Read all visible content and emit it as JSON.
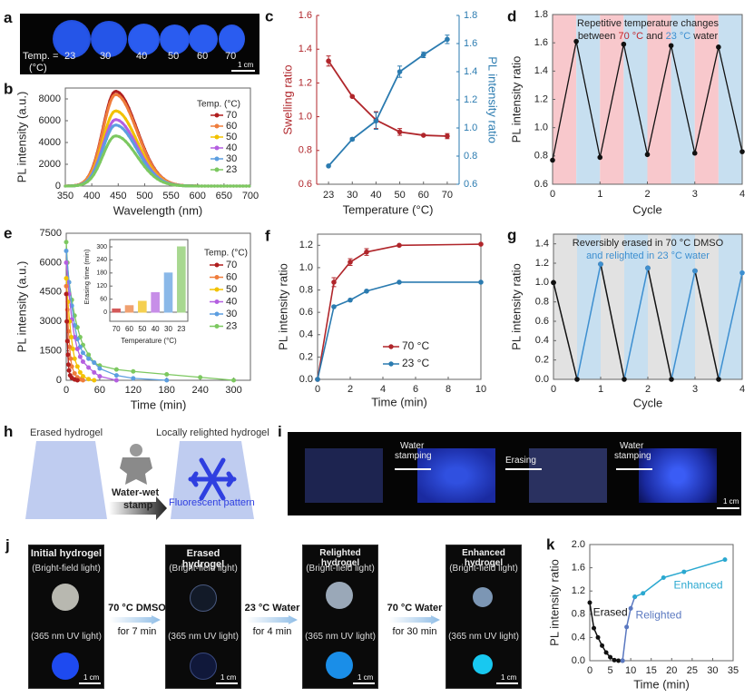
{
  "panels": {
    "a": {
      "label": "a",
      "temp_prefix": "Temp. =",
      "temp_unit": "(°C)",
      "temps": [
        "23",
        "30",
        "40",
        "50",
        "60",
        "70"
      ],
      "scale_bar": "1 cm"
    },
    "h": {
      "label": "h",
      "left_caption": "Erased hydrogel",
      "right_caption": "Locally relighted hydrogel",
      "arrow_caption_1": "Water-wet",
      "arrow_caption_2": "stamp",
      "pattern_caption": "Fluorescent  pattern",
      "colors": {
        "gel": "#b8c7ee",
        "pattern": "#2f3fe0"
      }
    },
    "i": {
      "label": "i",
      "steps": [
        {
          "text1": "Water",
          "text2": "stamping"
        },
        {
          "text1": "Erasing",
          "text2": ""
        },
        {
          "text1": "Water",
          "text2": "stamping"
        }
      ],
      "scale_bar": "1 cm"
    },
    "j": {
      "label": "j",
      "tiles": [
        {
          "title": "Initial hydrogel",
          "top": "(Bright-field light)",
          "bottom": "(365 nm UV light)",
          "scale": "1 cm"
        },
        {
          "title": "Erased hydrogel",
          "top": "(Bright-field light)",
          "bottom": "(365 nm UV light)",
          "scale": "1 cm"
        },
        {
          "title": "Relighted hydrogel",
          "top": "(Bright-field light)",
          "bottom": "(365 nm UV light)",
          "scale": "1 cm"
        },
        {
          "title": "Enhanced hydrogel",
          "top": "(Bright-field light)",
          "bottom": "(365 nm UV light)",
          "scale": "1 cm"
        }
      ],
      "steps": [
        {
          "line1": "70 °C DMSO",
          "line2": "for 7 min"
        },
        {
          "line1": "23 °C Water",
          "line2": "for 4 min"
        },
        {
          "line1": "70 °C Water",
          "line2": "for 30 min"
        }
      ]
    }
  },
  "chart_data": [
    {
      "id": "b",
      "label": "b",
      "type": "line",
      "xlabel": "Wavelength (nm)",
      "ylabel": "PL intensity (a.u.)",
      "xlim": [
        350,
        700
      ],
      "ylim": [
        0,
        9000
      ],
      "xticks": [
        350,
        400,
        450,
        500,
        550,
        600,
        650,
        700
      ],
      "yticks": [
        0,
        2000,
        4000,
        6000,
        8000
      ],
      "legend_title": "Temp. (°C)",
      "legend_position": "top-right",
      "peak_wavelength": 445,
      "series": [
        {
          "name": "70",
          "color": "#b01e1e",
          "peak": 8700
        },
        {
          "name": "60",
          "color": "#ef7d3c",
          "peak": 8400
        },
        {
          "name": "50",
          "color": "#f2c200",
          "peak": 6900
        },
        {
          "name": "40",
          "color": "#b45fe0",
          "peak": 6100
        },
        {
          "name": "30",
          "color": "#5c9ee0",
          "peak": 5600
        },
        {
          "name": "23",
          "color": "#7cc860",
          "peak": 4600
        }
      ]
    },
    {
      "id": "c",
      "label": "c",
      "type": "line",
      "xlabel": "Temperature (°C)",
      "ylabel_left": "Swelling ratio",
      "ylabel_right": "PL intensity ratio",
      "categories": [
        "23",
        "30",
        "40",
        "50",
        "60",
        "70"
      ],
      "ylim_left": [
        0.6,
        1.6
      ],
      "yticks_left": [
        0.6,
        0.8,
        1.0,
        1.2,
        1.4,
        1.6
      ],
      "ylim_right": [
        0.6,
        1.8
      ],
      "yticks_right": [
        0.6,
        0.8,
        1.0,
        1.2,
        1.4,
        1.6,
        1.8
      ],
      "series": [
        {
          "name": "Swelling ratio",
          "axis": "left",
          "color": "#b0262b",
          "values": [
            1.33,
            1.12,
            0.98,
            0.91,
            0.89,
            0.885
          ],
          "errors": [
            0.03,
            0.005,
            0.05,
            0.02,
            0.005,
            0.015
          ]
        },
        {
          "name": "PL intensity ratio",
          "axis": "right",
          "color": "#2b7bb0",
          "values": [
            0.73,
            0.92,
            1.05,
            1.4,
            1.52,
            1.63
          ],
          "errors": [
            0.005,
            0.01,
            0.06,
            0.04,
            0.02,
            0.03
          ]
        }
      ]
    },
    {
      "id": "d",
      "label": "d",
      "type": "line",
      "xlabel": "Cycle",
      "ylabel": "PL intensity ratio",
      "xlim": [
        0,
        4
      ],
      "ylim": [
        0.6,
        1.8
      ],
      "xticks": [
        0,
        1,
        2,
        3,
        4
      ],
      "yticks": [
        0.6,
        0.8,
        1.0,
        1.2,
        1.4,
        1.6,
        1.8
      ],
      "annotation_line1": "Repetitive temperature changes",
      "annotation_line2_parts": [
        "between ",
        "70 °C",
        " and ",
        "23 °C",
        " water"
      ],
      "band_colors": {
        "hot": "#f8c8cc",
        "cold": "#c7dff0"
      },
      "annotation_colors": {
        "hot": "#c0262d",
        "cold": "#3d8fd0"
      },
      "series": [
        {
          "name": "cycle",
          "color": "#111111",
          "x": [
            0,
            0.5,
            1,
            1.5,
            2,
            2.5,
            3,
            3.5,
            4
          ],
          "y": [
            0.77,
            1.61,
            0.79,
            1.59,
            0.81,
            1.58,
            0.82,
            1.57,
            0.83
          ]
        }
      ]
    },
    {
      "id": "e",
      "label": "e",
      "type": "line",
      "xlabel": "Time (min)",
      "ylabel": "PL intensity (a.u.)",
      "xlim": [
        0,
        330
      ],
      "ylim": [
        0,
        7500
      ],
      "xticks": [
        0,
        60,
        120,
        180,
        240,
        300
      ],
      "yticks": [
        0,
        1500,
        3000,
        4500,
        6000,
        7500
      ],
      "legend_title": "Temp. (°C)",
      "legend_position": "top-right",
      "series": [
        {
          "name": "70",
          "color": "#b01e1e",
          "x": [
            0,
            1,
            2,
            3,
            4,
            5,
            7,
            10,
            15,
            20
          ],
          "y": [
            4400,
            3000,
            2000,
            1300,
            800,
            500,
            250,
            120,
            40,
            0
          ]
        },
        {
          "name": "60",
          "color": "#ef7d3c",
          "x": [
            0,
            2,
            4,
            6,
            8,
            10,
            15,
            20,
            25,
            30
          ],
          "y": [
            4800,
            3600,
            2500,
            1700,
            1100,
            700,
            350,
            150,
            50,
            0
          ]
        },
        {
          "name": "50",
          "color": "#f2c200",
          "x": [
            0,
            3,
            6,
            9,
            12,
            15,
            20,
            25,
            30,
            40,
            50
          ],
          "y": [
            5200,
            4000,
            3000,
            2200,
            1600,
            1100,
            700,
            400,
            200,
            60,
            0
          ]
        },
        {
          "name": "40",
          "color": "#b45fe0",
          "x": [
            0,
            5,
            10,
            15,
            20,
            25,
            30,
            40,
            50,
            60,
            90
          ],
          "y": [
            6000,
            4400,
            3100,
            2200,
            1600,
            1200,
            950,
            650,
            400,
            200,
            0
          ]
        },
        {
          "name": "30",
          "color": "#5c9ee0",
          "x": [
            0,
            5,
            10,
            15,
            20,
            25,
            30,
            40,
            50,
            60,
            90,
            120,
            180
          ],
          "y": [
            6600,
            5000,
            3800,
            2800,
            2100,
            1700,
            1400,
            1100,
            900,
            600,
            250,
            100,
            0
          ]
        },
        {
          "name": "23",
          "color": "#7cc860",
          "x": [
            0,
            2,
            5,
            10,
            15,
            20,
            25,
            30,
            40,
            50,
            60,
            90,
            120,
            180,
            240,
            300
          ],
          "y": [
            7050,
            6000,
            5000,
            4100,
            3300,
            2700,
            2200,
            1800,
            1300,
            900,
            750,
            550,
            450,
            300,
            150,
            0
          ]
        }
      ],
      "inset": {
        "type": "bar",
        "xlabel": "Temperature (°C)",
        "ylabel": "Erasing time (min)",
        "categories": [
          "70",
          "60",
          "50",
          "40",
          "30",
          "23"
        ],
        "values": [
          15,
          30,
          50,
          90,
          180,
          300
        ],
        "ylim": [
          0,
          300
        ],
        "yticks": [
          0,
          60,
          120,
          180,
          240,
          300
        ],
        "colors": [
          "#d45a5a",
          "#f0a070",
          "#f5d050",
          "#c78ee8",
          "#8ab8e8",
          "#a8d890"
        ]
      }
    },
    {
      "id": "f",
      "label": "f",
      "type": "line",
      "xlabel": "Time (min)",
      "ylabel": "PL intensity ratio",
      "xlim": [
        0,
        10
      ],
      "ylim": [
        0,
        1.3
      ],
      "xticks": [
        0,
        2,
        4,
        6,
        8,
        10
      ],
      "yticks": [
        0.0,
        0.2,
        0.4,
        0.6,
        0.8,
        1.0,
        1.2
      ],
      "legend_position": "bottom-center",
      "series": [
        {
          "name": "70 °C",
          "color": "#b0262b",
          "x": [
            0,
            1,
            2,
            3,
            5,
            10
          ],
          "y": [
            0,
            0.87,
            1.05,
            1.14,
            1.2,
            1.21
          ],
          "errors": [
            0,
            0.04,
            0.03,
            0.03,
            0.01,
            0.01
          ]
        },
        {
          "name": "23 °C",
          "color": "#2b7bb0",
          "x": [
            0,
            1,
            2,
            3,
            5,
            10
          ],
          "y": [
            0,
            0.65,
            0.71,
            0.79,
            0.87,
            0.87
          ],
          "errors": [
            0,
            0.01,
            0.01,
            0.01,
            0.01,
            0.01
          ]
        }
      ]
    },
    {
      "id": "g",
      "label": "g",
      "type": "line",
      "xlabel": "Cycle",
      "ylabel": "PL intensity ratio",
      "xlim": [
        0,
        4
      ],
      "ylim": [
        0,
        1.5
      ],
      "xticks": [
        0,
        1,
        2,
        3,
        4
      ],
      "yticks": [
        0.0,
        0.2,
        0.4,
        0.6,
        0.8,
        1.0,
        1.2,
        1.4
      ],
      "annotation_line1": "Reversibly erased in 70 °C DMSO",
      "annotation_line2": "and relighted in 23 °C water",
      "band_colors": {
        "erase": "#e2e2e2",
        "relight": "#c7dff0"
      },
      "annotation_colors": {
        "erase": "#222222",
        "relight": "#3d8fd0"
      },
      "series": [
        {
          "name": "erase",
          "color": "#111111",
          "segments": [
            [
              0,
              1.0,
              0.5,
              0
            ],
            [
              1,
              1.19,
              1.5,
              0
            ],
            [
              2,
              1.15,
              2.5,
              0
            ],
            [
              3,
              1.12,
              3.5,
              0
            ]
          ]
        },
        {
          "name": "relight",
          "color": "#3d8fd0",
          "segments": [
            [
              0.5,
              0,
              1,
              1.19
            ],
            [
              1.5,
              0,
              2,
              1.15
            ],
            [
              2.5,
              0,
              3,
              1.12
            ],
            [
              3.5,
              0,
              4,
              1.1
            ]
          ]
        }
      ]
    },
    {
      "id": "k",
      "label": "k",
      "type": "line",
      "xlabel": "Time (min)",
      "ylabel": "PL intensity ratio",
      "xlim": [
        0,
        35
      ],
      "ylim": [
        0,
        2.0
      ],
      "xticks": [
        0,
        5,
        10,
        15,
        20,
        25,
        30,
        35
      ],
      "yticks": [
        0.0,
        0.4,
        0.8,
        1.2,
        1.6,
        2.0
      ],
      "series": [
        {
          "name": "Erased",
          "color": "#111111",
          "x": [
            0,
            1,
            2,
            3,
            4,
            5,
            6,
            7,
            8
          ],
          "y": [
            1.0,
            0.56,
            0.4,
            0.26,
            0.14,
            0.06,
            0.01,
            0.0,
            0.0
          ]
        },
        {
          "name": "Relighted",
          "color": "#5a78c0",
          "x": [
            8,
            9,
            10,
            11
          ],
          "y": [
            0.0,
            0.58,
            0.9,
            1.1
          ]
        },
        {
          "name": "Enhanced",
          "color": "#2aa8d0",
          "x": [
            11,
            13,
            18,
            23,
            33
          ],
          "y": [
            1.1,
            1.16,
            1.43,
            1.53,
            1.74
          ]
        }
      ]
    }
  ]
}
